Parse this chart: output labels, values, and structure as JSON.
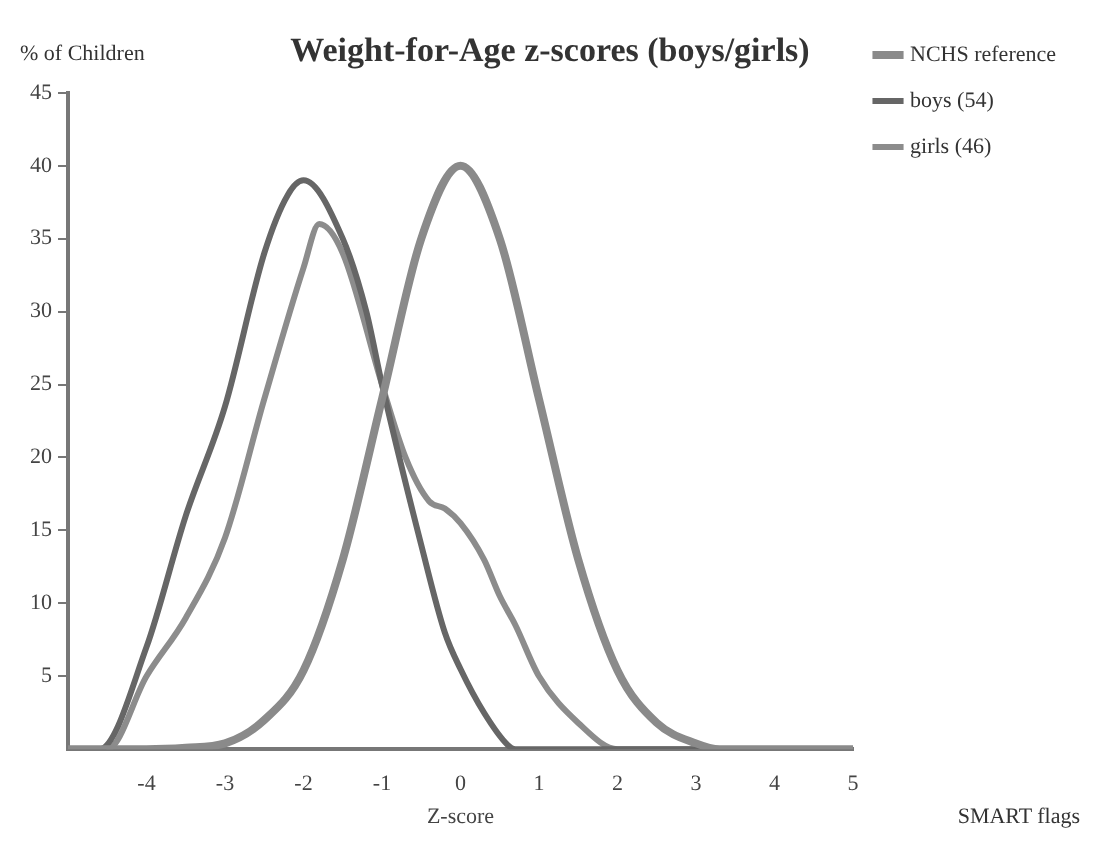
{
  "chart_data": {
    "type": "line",
    "title": "Weight-for-Age z-scores (boys/girls)",
    "xlabel": "Z-score",
    "ylabel": "% of Children",
    "annotations": [
      "SMART flags"
    ],
    "xlim": [
      -5,
      5
    ],
    "xticks": [
      -4,
      -3,
      -2,
      -1,
      0,
      1,
      2,
      3,
      4,
      5
    ],
    "ylim": [
      0,
      45
    ],
    "yticks": [
      5,
      10,
      15,
      20,
      25,
      30,
      35,
      40,
      45
    ],
    "grid": false,
    "legend": "top right",
    "marker": "none",
    "line_style": "solid",
    "series": [
      {
        "name": "NCHS reference",
        "color": "#8a8a8a",
        "x": [
          -5,
          -4,
          -3.5,
          -3,
          -2.5,
          -2,
          -1.5,
          -1,
          -0.5,
          0,
          0.5,
          1,
          1.5,
          2,
          2.5,
          3,
          3.3,
          5
        ],
        "values": [
          0,
          0,
          0.1,
          0.4,
          2,
          5.4,
          13,
          24,
          35,
          40,
          35,
          24,
          13,
          5.4,
          1.8,
          0.4,
          0,
          0
        ]
      },
      {
        "name": "boys (54)",
        "color": "#666666",
        "x": [
          -5,
          -4.6,
          -4,
          -3.5,
          -3,
          -2.5,
          -2.2,
          -2,
          -1.5,
          -1.2,
          -1,
          -0.5,
          -0.2,
          0,
          0.3,
          0.6,
          0.7,
          5
        ],
        "values": [
          0,
          0,
          7,
          16,
          23.5,
          34,
          38,
          39,
          35,
          30,
          25,
          14,
          8,
          5.5,
          2.5,
          0.3,
          0,
          0
        ]
      },
      {
        "name": "girls (46)",
        "color": "#8c8c8c",
        "x": [
          -5,
          -4.5,
          -4,
          -3.5,
          -3,
          -2.5,
          -2,
          -1.8,
          -1.5,
          -1,
          -0.7,
          -0.4,
          -0.2,
          0,
          0.3,
          0.5,
          0.7,
          1,
          1.5,
          2,
          5
        ],
        "values": [
          0,
          0,
          5,
          9,
          14.5,
          24,
          33,
          36,
          34,
          25,
          20,
          17,
          16.5,
          15.5,
          13,
          10.5,
          8.5,
          5,
          1.8,
          0,
          0
        ]
      }
    ]
  }
}
